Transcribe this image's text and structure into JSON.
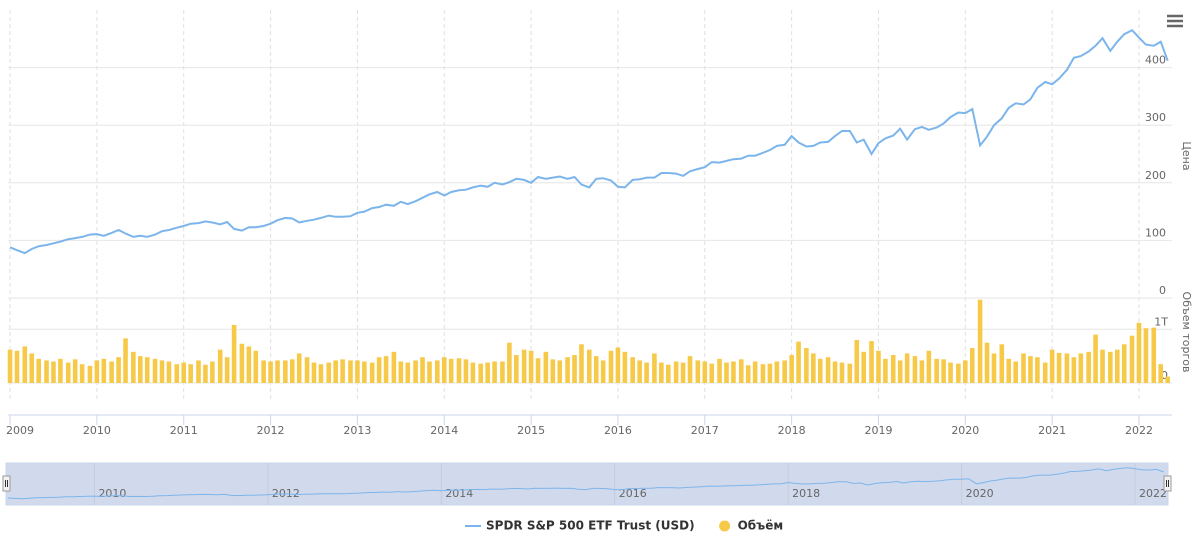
{
  "chart_data": {
    "type": "line",
    "series": [
      {
        "name": "SPDR S&P 500 ETF Trust (USD)",
        "color": "#7cb5ec",
        "type": "line",
        "values": [
          88,
          83,
          78,
          85,
          90,
          92,
          95,
          98,
          102,
          104,
          106,
          110,
          111,
          108,
          113,
          118,
          112,
          106,
          108,
          106,
          110,
          116,
          118,
          122,
          125,
          129,
          130,
          133,
          131,
          128,
          132,
          120,
          117,
          123,
          123,
          125,
          129,
          135,
          139,
          138,
          131,
          134,
          136,
          139,
          143,
          141,
          141,
          142,
          148,
          150,
          156,
          158,
          162,
          160,
          167,
          163,
          168,
          174,
          180,
          184,
          178,
          184,
          187,
          188,
          192,
          195,
          193,
          200,
          197,
          201,
          207,
          205,
          200,
          210,
          207,
          209,
          211,
          207,
          210,
          197,
          192,
          207,
          208,
          204,
          193,
          192,
          205,
          206,
          209,
          209,
          217,
          217,
          216,
          212,
          220,
          224,
          227,
          236,
          235,
          238,
          241,
          242,
          247,
          247,
          252,
          257,
          264,
          266,
          281,
          270,
          263,
          264,
          270,
          271,
          281,
          290,
          290,
          270,
          275,
          250,
          269,
          277,
          282,
          294,
          275,
          293,
          297,
          292,
          296,
          303,
          314,
          322,
          321,
          328,
          265,
          280,
          300,
          312,
          330,
          338,
          336,
          345,
          365,
          375,
          371,
          381,
          396,
          417,
          420,
          428,
          438,
          451,
          429,
          445,
          458,
          465,
          452,
          440,
          438,
          445,
          412
        ]
      },
      {
        "name": "Объём",
        "color": "#f7c948",
        "type": "bar",
        "axis": "y2",
        "values": [
          0.62,
          0.6,
          0.68,
          0.55,
          0.45,
          0.42,
          0.4,
          0.45,
          0.38,
          0.44,
          0.35,
          0.32,
          0.42,
          0.45,
          0.4,
          0.48,
          0.83,
          0.58,
          0.5,
          0.48,
          0.45,
          0.42,
          0.4,
          0.35,
          0.38,
          0.35,
          0.42,
          0.34,
          0.4,
          0.62,
          0.48,
          1.08,
          0.73,
          0.68,
          0.6,
          0.42,
          0.4,
          0.42,
          0.42,
          0.44,
          0.55,
          0.48,
          0.38,
          0.35,
          0.38,
          0.42,
          0.44,
          0.42,
          0.42,
          0.4,
          0.38,
          0.48,
          0.5,
          0.58,
          0.4,
          0.38,
          0.42,
          0.48,
          0.4,
          0.42,
          0.48,
          0.45,
          0.46,
          0.44,
          0.38,
          0.36,
          0.38,
          0.4,
          0.4,
          0.75,
          0.52,
          0.62,
          0.6,
          0.46,
          0.58,
          0.44,
          0.42,
          0.48,
          0.52,
          0.72,
          0.62,
          0.5,
          0.42,
          0.6,
          0.66,
          0.58,
          0.48,
          0.42,
          0.38,
          0.55,
          0.38,
          0.34,
          0.4,
          0.38,
          0.5,
          0.42,
          0.4,
          0.36,
          0.45,
          0.38,
          0.4,
          0.44,
          0.33,
          0.4,
          0.35,
          0.36,
          0.4,
          0.42,
          0.52,
          0.77,
          0.65,
          0.55,
          0.45,
          0.48,
          0.4,
          0.38,
          0.36,
          0.8,
          0.58,
          0.78,
          0.6,
          0.45,
          0.52,
          0.42,
          0.55,
          0.5,
          0.42,
          0.6,
          0.45,
          0.44,
          0.38,
          0.36,
          0.42,
          0.65,
          1.55,
          0.75,
          0.55,
          0.72,
          0.45,
          0.4,
          0.55,
          0.5,
          0.48,
          0.38,
          0.62,
          0.56,
          0.55,
          0.48,
          0.55,
          0.58,
          0.9,
          0.62,
          0.58,
          0.62,
          0.72,
          0.88,
          1.12,
          1.02,
          1.03,
          0.35,
          0.12
        ]
      }
    ],
    "x": [
      2009,
      2009.08,
      2009.17,
      2009.25,
      2009.33,
      2009.42,
      2009.5,
      2009.58,
      2009.67,
      2009.75,
      2009.83,
      2009.92,
      2010,
      2010.08,
      2010.17,
      2010.25,
      2010.33,
      2010.42,
      2010.5,
      2010.58,
      2010.67,
      2010.75,
      2010.83,
      2010.92,
      2011,
      2011.08,
      2011.17,
      2011.25,
      2011.33,
      2011.42,
      2011.5,
      2011.58,
      2011.67,
      2011.75,
      2011.83,
      2011.92,
      2012,
      2012.08,
      2012.17,
      2012.25,
      2012.33,
      2012.42,
      2012.5,
      2012.58,
      2012.67,
      2012.75,
      2012.83,
      2012.92,
      2013,
      2013.08,
      2013.17,
      2013.25,
      2013.33,
      2013.42,
      2013.5,
      2013.58,
      2013.67,
      2013.75,
      2013.83,
      2013.92,
      2014,
      2014.08,
      2014.17,
      2014.25,
      2014.33,
      2014.42,
      2014.5,
      2014.58,
      2014.67,
      2014.75,
      2014.83,
      2014.92,
      2015,
      2015.08,
      2015.17,
      2015.25,
      2015.33,
      2015.42,
      2015.5,
      2015.58,
      2015.67,
      2015.75,
      2015.83,
      2015.92,
      2016,
      2016.08,
      2016.17,
      2016.25,
      2016.33,
      2016.42,
      2016.5,
      2016.58,
      2016.67,
      2016.75,
      2016.83,
      2016.92,
      2017,
      2017.08,
      2017.17,
      2017.25,
      2017.33,
      2017.42,
      2017.5,
      2017.58,
      2017.67,
      2017.75,
      2017.83,
      2017.92,
      2018,
      2018.08,
      2018.17,
      2018.25,
      2018.33,
      2018.42,
      2018.5,
      2018.58,
      2018.67,
      2018.75,
      2018.83,
      2018.92,
      2019,
      2019.08,
      2019.17,
      2019.25,
      2019.33,
      2019.42,
      2019.5,
      2019.58,
      2019.67,
      2019.75,
      2019.83,
      2019.92,
      2020,
      2020.08,
      2020.17,
      2020.25,
      2020.33,
      2020.42,
      2020.5,
      2020.58,
      2020.67,
      2020.75,
      2020.83,
      2020.92,
      2021,
      2021.08,
      2021.17,
      2021.25,
      2021.33,
      2021.42,
      2021.5,
      2021.58,
      2021.67,
      2021.75,
      2021.83,
      2021.92,
      2022,
      2022.08,
      2022.17,
      2022.25,
      2022.33
    ],
    "xlim": [
      2008.98,
      2022.38
    ],
    "xticks": [
      2009,
      2010,
      2011,
      2012,
      2013,
      2014,
      2015,
      2016,
      2017,
      2018,
      2019,
      2020,
      2021,
      2022
    ],
    "navigator_xticks": [
      2010,
      2012,
      2014,
      2016,
      2018,
      2020,
      2022
    ],
    "ylim": [
      0,
      500
    ],
    "yticks": [
      0,
      100,
      200,
      300,
      400
    ],
    "y_label": "Цена",
    "y2lim": [
      0,
      1.6
    ],
    "y2ticks": [
      0,
      {
        "value": 1,
        "label": "1T"
      }
    ],
    "y2_label": "Объем торгов",
    "grid": true,
    "legend": "bottom"
  }
}
